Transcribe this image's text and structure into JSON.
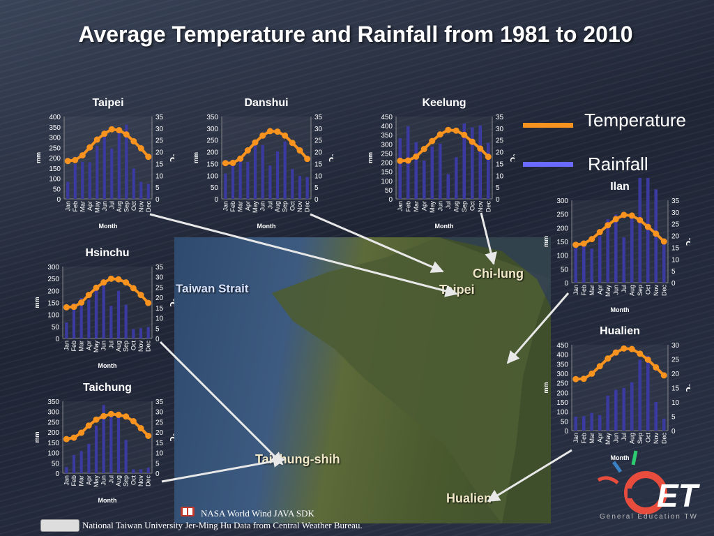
{
  "title": "Average Temperature and Rainfall from 1981 to 2010",
  "legend": {
    "temperature": "Temperature",
    "rainfall": "Rainfall"
  },
  "colors": {
    "temperature": "#f7931e",
    "rainfall": "#3a3aa0",
    "legend_rain": "#6a6aff"
  },
  "map_labels": {
    "strait": "Taiwan Strait",
    "keelung": "Chi-lung",
    "taipei": "Taipei",
    "taichung": "Taichung-shih",
    "hualien": "Hualien"
  },
  "credits": {
    "line1": "NASA World Wind JAVA SDK",
    "line2": "National Taiwan University Jer-Ming Hu Data from Central Weather Bureau."
  },
  "logo": {
    "mark": "GET",
    "sub": "General Education TW"
  },
  "chart_data": [
    {
      "type": "bar+line",
      "title": "Taipei",
      "xlabel": "Month",
      "ylabel_left": "mm",
      "ylabel_right": "℃",
      "categories": [
        "Jan",
        "Feb",
        "Mar",
        "Apr",
        "May",
        "Jun",
        "Jul",
        "Aug",
        "Sep",
        "Oct",
        "Nov",
        "Dec"
      ],
      "rain_ylim": [
        0,
        400
      ],
      "rain_ticks": [
        0,
        50,
        100,
        150,
        200,
        250,
        300,
        350,
        400
      ],
      "temp_ylim": [
        0,
        35
      ],
      "temp_ticks": [
        0,
        5,
        10,
        15,
        20,
        25,
        30,
        35
      ],
      "series": [
        {
          "name": "Rainfall",
          "values": [
            83,
            170,
            180,
            178,
            258,
            321,
            245,
            322,
            361,
            148,
            83,
            73
          ]
        },
        {
          "name": "Temperature",
          "values": [
            16.1,
            16.5,
            18.5,
            21.9,
            25.2,
            27.7,
            29.6,
            29.2,
            27.4,
            24.5,
            21.5,
            17.9
          ]
        }
      ]
    },
    {
      "type": "bar+line",
      "title": "Danshui",
      "xlabel": "Month",
      "ylabel_left": "mm",
      "ylabel_right": "℃",
      "categories": [
        "Jan",
        "Feb",
        "Mar",
        "Apr",
        "May",
        "Jun",
        "Jul",
        "Aug",
        "Sep",
        "Oct",
        "Nov",
        "Dec"
      ],
      "rain_ylim": [
        0,
        350
      ],
      "rain_ticks": [
        0,
        50,
        100,
        150,
        200,
        250,
        300,
        350
      ],
      "temp_ylim": [
        0,
        35
      ],
      "temp_ticks": [
        0,
        5,
        10,
        15,
        20,
        25,
        30,
        35
      ],
      "series": [
        {
          "name": "Rainfall",
          "values": [
            108,
            153,
            181,
            157,
            227,
            229,
            142,
            202,
            244,
            127,
            98,
            93
          ]
        },
        {
          "name": "Temperature",
          "values": [
            15.2,
            15.3,
            17.1,
            20.6,
            24.0,
            26.9,
            28.8,
            28.6,
            26.9,
            23.8,
            20.6,
            17.0
          ]
        }
      ]
    },
    {
      "type": "bar+line",
      "title": "Keelung",
      "xlabel": "Month",
      "ylabel_left": "mm",
      "ylabel_right": "℃",
      "categories": [
        "Jan",
        "Feb",
        "Mar",
        "Apr",
        "May",
        "Jun",
        "Jul",
        "Aug",
        "Sep",
        "Oct",
        "Nov",
        "Dec"
      ],
      "rain_ylim": [
        0,
        450
      ],
      "rain_ticks": [
        0,
        50,
        100,
        150,
        200,
        250,
        300,
        350,
        400,
        450
      ],
      "temp_ylim": [
        0,
        35
      ],
      "temp_ticks": [
        0,
        5,
        10,
        15,
        20,
        25,
        30,
        35
      ],
      "series": [
        {
          "name": "Rainfall",
          "values": [
            332,
            397,
            310,
            209,
            286,
            302,
            135,
            228,
            412,
            391,
            401,
            306
          ]
        },
        {
          "name": "Temperature",
          "values": [
            16.2,
            16.3,
            18.0,
            21.2,
            24.6,
            27.4,
            29.3,
            29.0,
            27.2,
            24.3,
            21.4,
            17.9
          ]
        }
      ]
    },
    {
      "type": "bar+line",
      "title": "Ilan",
      "xlabel": "Month",
      "ylabel_left": "mm",
      "ylabel_right": "℃",
      "categories": [
        "Jan",
        "Feb",
        "Mar",
        "Apr",
        "May",
        "Jun",
        "Jul",
        "Aug",
        "Sep",
        "Oct",
        "Nov",
        "Dec"
      ],
      "rain_ylim": [
        0,
        300
      ],
      "rain_ticks": [
        0,
        50,
        100,
        150,
        200,
        250,
        300
      ],
      "temp_ylim": [
        0,
        35
      ],
      "temp_ticks": [
        0,
        5,
        10,
        15,
        20,
        25,
        30,
        35
      ],
      "series": [
        {
          "name": "Rainfall",
          "values": [
            136,
            146,
            124,
            169,
            231,
            248,
            165,
            243,
            426,
            455,
            340,
            156
          ]
        },
        {
          "name": "Temperature",
          "values": [
            16.1,
            16.6,
            18.5,
            21.5,
            24.4,
            27.0,
            28.8,
            28.5,
            26.6,
            23.7,
            20.8,
            17.5
          ]
        }
      ]
    },
    {
      "type": "bar+line",
      "title": "Hsinchu",
      "xlabel": "Month",
      "ylabel_left": "mm",
      "ylabel_right": "℃",
      "categories": [
        "Jan",
        "Feb",
        "Mar",
        "Apr",
        "May",
        "Jun",
        "Jul",
        "Aug",
        "Sep",
        "Oct",
        "Nov",
        "Dec"
      ],
      "rain_ylim": [
        0,
        300
      ],
      "rain_ticks": [
        0,
        50,
        100,
        150,
        200,
        250,
        300
      ],
      "temp_ylim": [
        0,
        35
      ],
      "temp_ticks": [
        0,
        5,
        10,
        15,
        20,
        25,
        30,
        35
      ],
      "series": [
        {
          "name": "Rainfall",
          "values": [
            67,
            148,
            169,
            162,
            224,
            240,
            136,
            199,
            141,
            39,
            43,
            48
          ]
        },
        {
          "name": "Temperature",
          "values": [
            15.2,
            15.4,
            17.5,
            21.2,
            24.7,
            27.3,
            29.1,
            28.8,
            27.3,
            24.5,
            21.2,
            17.3
          ]
        }
      ]
    },
    {
      "type": "bar+line",
      "title": "Taichung",
      "xlabel": "Month",
      "ylabel_left": "mm",
      "ylabel_right": "℃",
      "categories": [
        "Jan",
        "Feb",
        "Mar",
        "Apr",
        "May",
        "Jun",
        "Jul",
        "Aug",
        "Sep",
        "Oct",
        "Nov",
        "Dec"
      ],
      "rain_ylim": [
        0,
        350
      ],
      "rain_ticks": [
        0,
        50,
        100,
        150,
        200,
        250,
        300,
        350
      ],
      "temp_ylim": [
        0,
        35
      ],
      "temp_ticks": [
        0,
        5,
        10,
        15,
        20,
        25,
        30,
        35
      ],
      "series": [
        {
          "name": "Rainfall",
          "values": [
            30,
            89,
            108,
            143,
            231,
            332,
            301,
            285,
            162,
            19,
            19,
            27
          ]
        },
        {
          "name": "Temperature",
          "values": [
            16.6,
            17.3,
            19.7,
            23.2,
            26.1,
            27.8,
            28.8,
            28.4,
            27.6,
            25.3,
            21.9,
            18.2
          ]
        }
      ]
    },
    {
      "type": "bar+line",
      "title": "Hualien",
      "xlabel": "Month",
      "ylabel_left": "mm",
      "ylabel_right": "℃",
      "categories": [
        "Jan",
        "Feb",
        "Mar",
        "Apr",
        "May",
        "Jun",
        "Jul",
        "Aug",
        "Sep",
        "Oct",
        "Nov",
        "Dec"
      ],
      "rain_ylim": [
        0,
        450
      ],
      "rain_ticks": [
        0,
        50,
        100,
        150,
        200,
        250,
        300,
        350,
        400,
        450
      ],
      "temp_ylim": [
        0,
        30
      ],
      "temp_ticks": [
        0,
        5,
        10,
        15,
        20,
        25,
        30
      ],
      "series": [
        {
          "name": "Rainfall",
          "values": [
            73,
            76,
            93,
            81,
            183,
            214,
            224,
            254,
            372,
            393,
            150,
            63
          ]
        },
        {
          "name": "Temperature",
          "values": [
            18.0,
            18.1,
            19.9,
            22.5,
            25.2,
            27.3,
            28.7,
            28.5,
            26.9,
            24.8,
            22.1,
            19.3
          ]
        }
      ]
    }
  ]
}
